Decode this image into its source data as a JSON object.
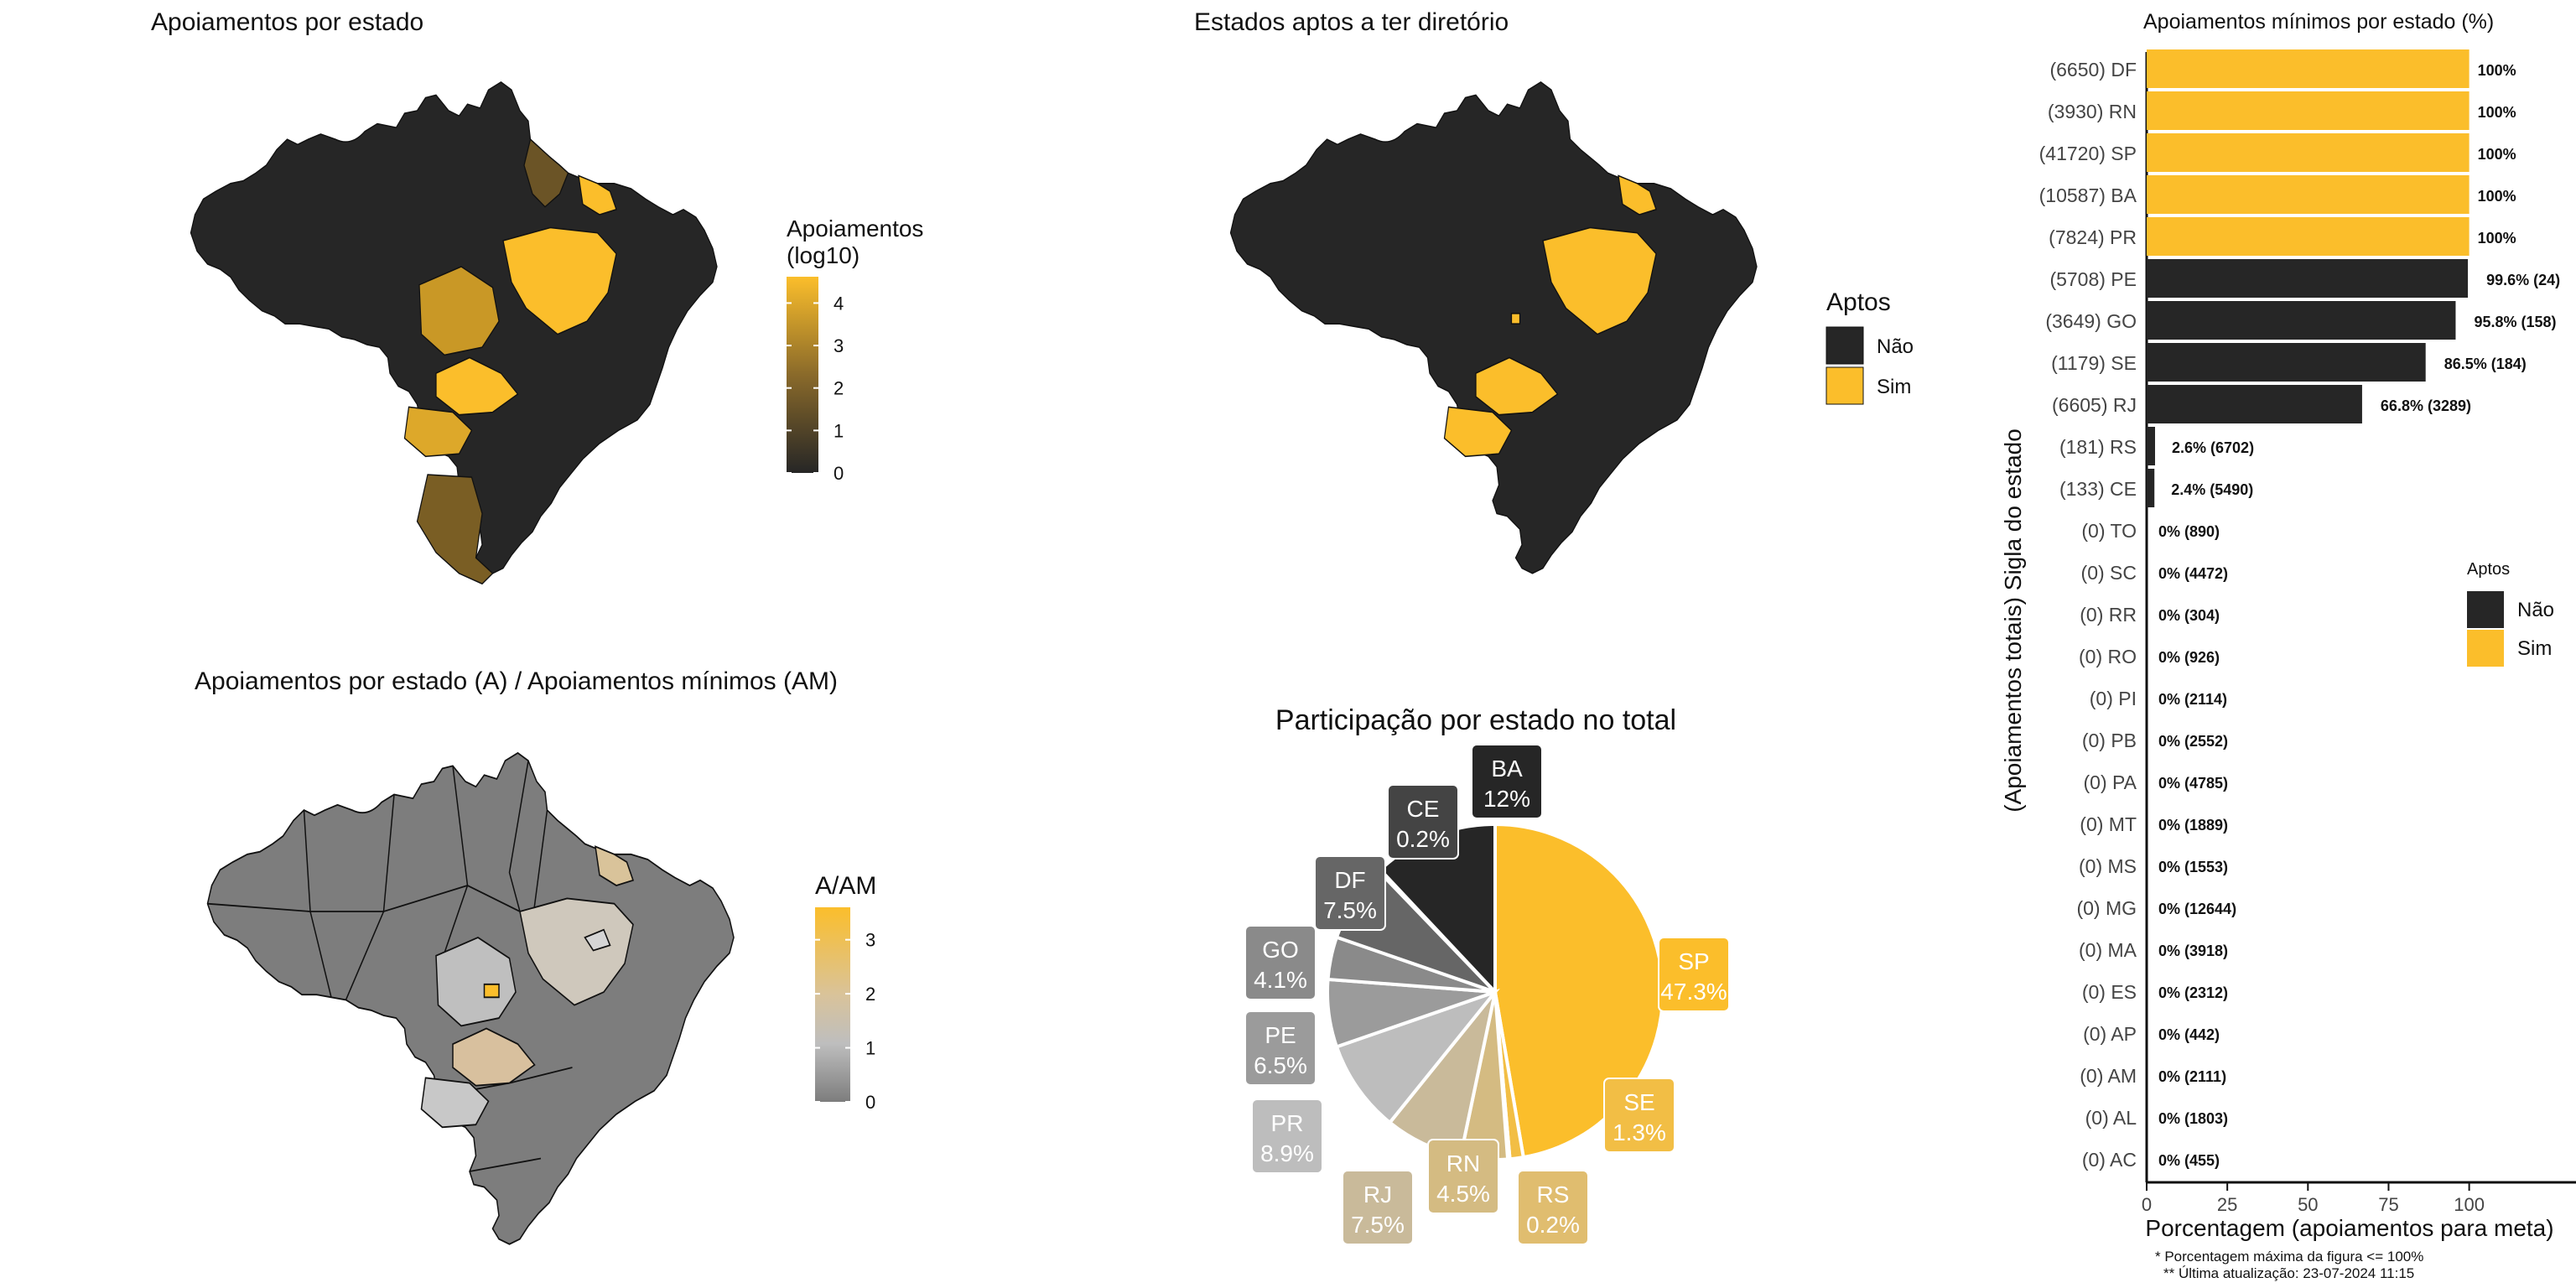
{
  "colors": {
    "dark": "#262626",
    "gold": "#FBBE2B",
    "no": "#262626",
    "yes": "#FBBE2B",
    "grey": "#7D7D7D"
  },
  "map1": {
    "title": "Apoiamentos por estado",
    "legend_title_1": "Apoiamentos",
    "legend_title_2": "(log10)",
    "legend_ticks": [
      "4",
      "3",
      "2",
      "1",
      "0"
    ],
    "ticks_values": [
      4,
      3,
      2,
      1,
      0
    ],
    "scale_max": 4.62
  },
  "map2": {
    "title": "Estados aptos a ter diretório",
    "legend_title": "Aptos",
    "legend_items": [
      {
        "label": "Não"
      },
      {
        "label": "Sim"
      }
    ]
  },
  "map3": {
    "title": "Apoiamentos por estado (A) / Apoiamentos mínimos (AM)",
    "legend_title": "A/AM",
    "legend_ticks": [
      "3",
      "2",
      "1",
      "0"
    ],
    "ticks_values": [
      3,
      2,
      1,
      0
    ],
    "scale_max": 3.6
  },
  "pie": {
    "title": "Participação por estado no total",
    "slices": [
      {
        "state": "SP",
        "pct": "47.3%",
        "value": 47.3,
        "color": "#FBBE2B"
      },
      {
        "state": "SE",
        "pct": "1.3%",
        "value": 1.3,
        "color": "#F2BE45"
      },
      {
        "state": "RS",
        "pct": "0.2%",
        "value": 0.2,
        "color": "#E0BD6F"
      },
      {
        "state": "RN",
        "pct": "4.5%",
        "value": 4.5,
        "color": "#D4BB82"
      },
      {
        "state": "RJ",
        "pct": "7.5%",
        "value": 7.5,
        "color": "#C9BA9A"
      },
      {
        "state": "PR",
        "pct": "8.9%",
        "value": 8.9,
        "color": "#BDBDBD"
      },
      {
        "state": "PE",
        "pct": "6.5%",
        "value": 6.5,
        "color": "#9B9B9B"
      },
      {
        "state": "GO",
        "pct": "4.1%",
        "value": 4.1,
        "color": "#8A8A8A"
      },
      {
        "state": "DF",
        "pct": "7.5%",
        "value": 7.5,
        "color": "#666666"
      },
      {
        "state": "CE",
        "pct": "0.2%",
        "value": 0.2,
        "color": "#444444"
      },
      {
        "state": "BA",
        "pct": "12%",
        "value": 12,
        "color": "#262626"
      }
    ]
  },
  "chart_data": {
    "type": "bar",
    "orientation": "horizontal",
    "title": "Apoiamentos mínimos por estado (%)",
    "xlabel": "Porcentagem (apoiamentos para meta)",
    "ylabel": "(Apoiamentos totais) Sigla do estado",
    "xlim": [
      0,
      130
    ],
    "xticks": [
      0,
      25,
      50,
      75,
      100
    ],
    "legend": {
      "title": "Aptos",
      "items": [
        {
          "label": "Não"
        },
        {
          "label": "Sim"
        }
      ],
      "position": "right"
    },
    "categories": [
      "(6650) DF",
      "(3930) RN",
      "(41720) SP",
      "(10587) BA",
      "(7824) PR",
      "(5708) PE",
      "(3649) GO",
      "(1179) SE",
      "(6605) RJ",
      "(181) RS",
      "(133) CE",
      "(0) TO",
      "(0) SC",
      "(0) RR",
      "(0) RO",
      "(0) PI",
      "(0) PB",
      "(0) PA",
      "(0) MT",
      "(0) MS",
      "(0) MG",
      "(0) MA",
      "(0) ES",
      "(0) AP",
      "(0) AM",
      "(0) AL",
      "(0) AC"
    ],
    "values": [
      100,
      100,
      100,
      100,
      100,
      99.6,
      95.8,
      86.5,
      66.8,
      2.6,
      2.4,
      0,
      0,
      0,
      0,
      0,
      0,
      0,
      0,
      0,
      0,
      0,
      0,
      0,
      0,
      0,
      0
    ],
    "apto": [
      "Sim",
      "Sim",
      "Sim",
      "Sim",
      "Sim",
      "Não",
      "Não",
      "Não",
      "Não",
      "Não",
      "Não",
      "Não",
      "Não",
      "Não",
      "Não",
      "Não",
      "Não",
      "Não",
      "Não",
      "Não",
      "Não",
      "Não",
      "Não",
      "Não",
      "Não",
      "Não",
      "Não"
    ],
    "labels": [
      "100%",
      "100%",
      "100%",
      "100%",
      "100%",
      "99.6% (24)",
      "95.8% (158)",
      "86.5% (184)",
      "66.8% (3289)",
      "2.6% (6702)",
      "2.4% (5490)",
      "0% (890)",
      "0% (4472)",
      "0% (304)",
      "0% (926)",
      "0% (2114)",
      "0% (2552)",
      "0% (4785)",
      "0% (1889)",
      "0% (1553)",
      "0% (12644)",
      "0% (3918)",
      "0% (2312)",
      "0% (442)",
      "0% (2111)",
      "0% (1803)",
      "0% (455)"
    ],
    "footnote_1": "* Porcentagem máxima da figura <= 100%",
    "footnote_2": "** Última atualização: 23-07-2024 11:15"
  }
}
